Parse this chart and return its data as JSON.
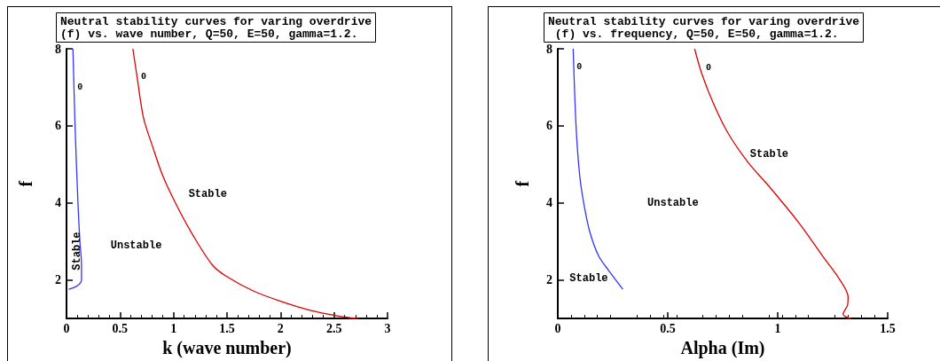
{
  "chart_data": [
    {
      "type": "line",
      "title": "Neutral stability curves for varing overdrive\n(f) vs. wave number, Q=50, E=50, gamma=1.2.",
      "xlabel": "k (wave number)",
      "ylabel": "f",
      "xlim": [
        0,
        3
      ],
      "xticks": [
        0,
        0.5,
        1,
        1.5,
        2,
        2.5,
        3
      ],
      "ylim": [
        1,
        8
      ],
      "yticks": [
        2,
        4,
        6,
        8
      ],
      "series": [
        {
          "color": "#3333ff",
          "x": [
            0.06,
            0.08,
            0.107,
            0.125,
            0.14,
            0.14,
            0.1,
            0.02
          ],
          "values": [
            8,
            6,
            4,
            3,
            2.4,
            2,
            1.85,
            1.76
          ]
        },
        {
          "color": "#dd0000",
          "x": [
            0.62,
            0.66,
            0.72,
            0.8,
            0.9,
            1.03,
            1.18,
            1.36,
            1.49,
            1.75,
            2.0,
            2.27,
            2.53,
            2.72
          ],
          "values": [
            8,
            7.26,
            6.2,
            5.5,
            4.7,
            3.93,
            3.17,
            2.4,
            2.1,
            1.71,
            1.45,
            1.22,
            1.07,
            1.0
          ]
        }
      ],
      "annotations": [
        "0",
        "0",
        "Stable",
        "Unstable",
        "Stable"
      ]
    },
    {
      "type": "line",
      "title": "Neutral stability curves for varing overdrive\n (f) vs. frequency, Q=50, E=50, gamma=1.2.",
      "xlabel": "Alpha (Im)",
      "ylabel": "f",
      "xlim": [
        0,
        1.5
      ],
      "xticks": [
        0,
        0.5,
        1,
        1.5
      ],
      "ylim": [
        1,
        8
      ],
      "yticks": [
        2,
        4,
        6,
        8
      ],
      "series": [
        {
          "color": "#3333ff",
          "x": [
            0.07,
            0.083,
            0.1,
            0.12,
            0.146,
            0.185,
            0.231,
            0.296
          ],
          "values": [
            8,
            6,
            4.69,
            3.93,
            3.24,
            2.63,
            2.25,
            1.76
          ]
        },
        {
          "color": "#dd0000",
          "x": [
            0.622,
            0.655,
            0.707,
            0.772,
            0.863,
            0.968,
            1.098,
            1.203,
            1.281,
            1.32,
            1.317,
            1.297,
            1.307,
            1.33
          ],
          "values": [
            8,
            7.35,
            6.59,
            5.83,
            5.07,
            4.38,
            3.47,
            2.63,
            2.02,
            1.56,
            1.34,
            1.11,
            1.05,
            1.0
          ]
        }
      ],
      "annotations": [
        "0",
        "0",
        "Stable",
        "Unstable",
        "Stable"
      ]
    }
  ]
}
